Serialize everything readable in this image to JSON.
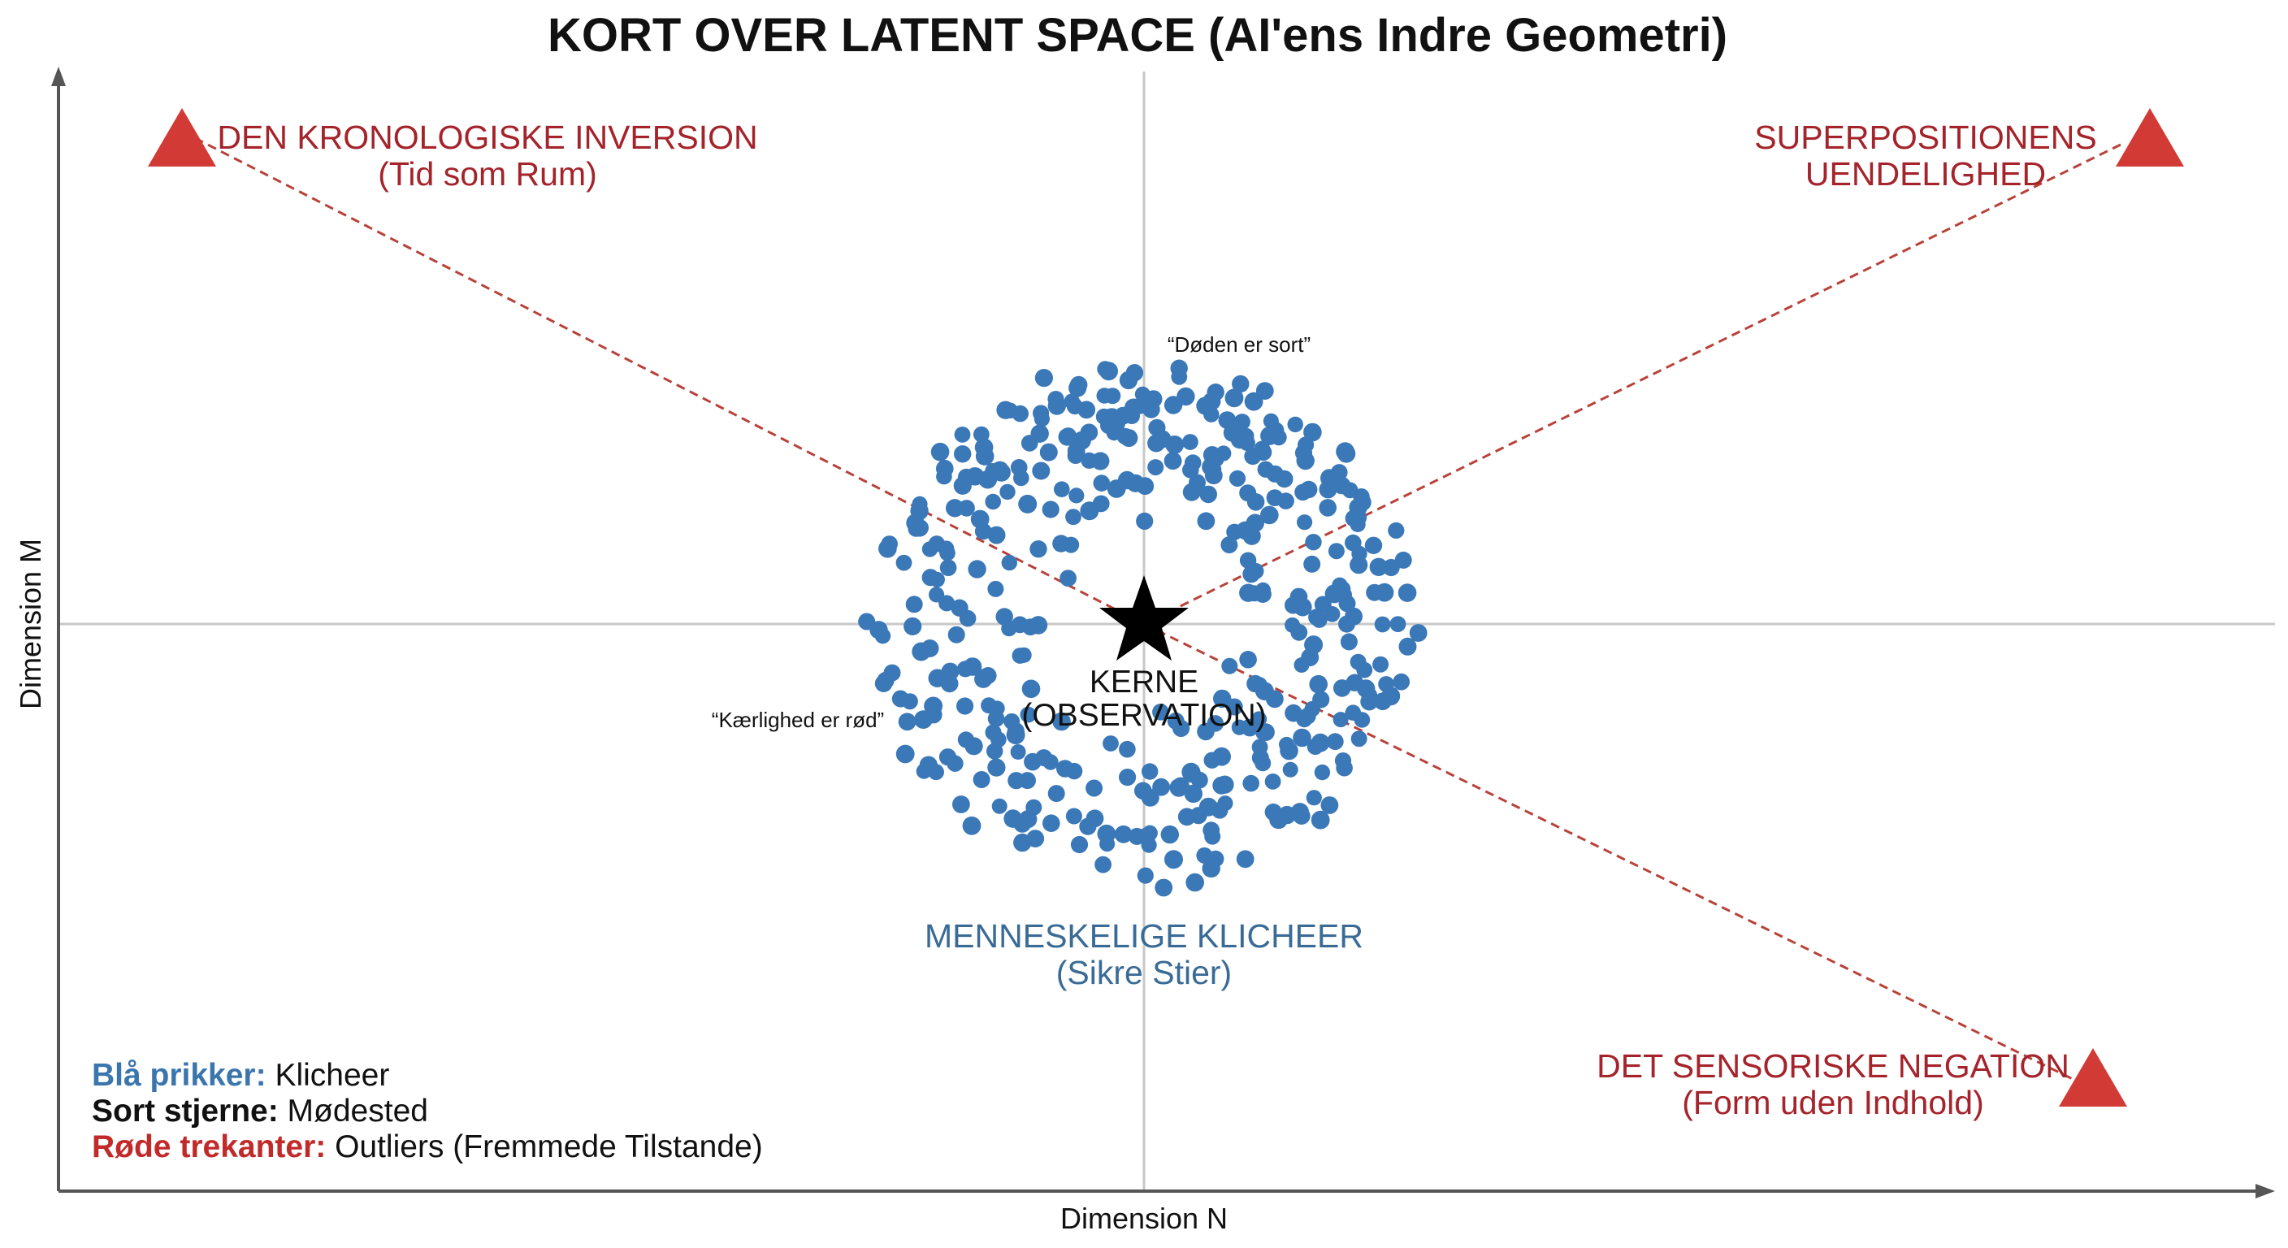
{
  "title": "KORT OVER LATENT SPACE (AI'ens Indre Geometri)",
  "axes": {
    "x_label": "Dimension N",
    "y_label": "Dimension M"
  },
  "core": {
    "line1": "KERNE",
    "line2": "(OBSERVATION)"
  },
  "cluster": {
    "line1": "MENNESKELIGE KLICHEER",
    "line2": "(Sikre Stier)",
    "color": "#3b78b8"
  },
  "quotes": {
    "top": "“Døden er sort”",
    "left": "“Kærlighed er rød”"
  },
  "outliers": {
    "color": "#d23a36",
    "label_color": "#a5232a",
    "top_left": {
      "line1": "DEN KRONOLOGISKE INVERSION",
      "line2": "(Tid som Rum)"
    },
    "top_right": {
      "line1": "SUPERPOSITIONENS",
      "line2": "UENDELIGHED"
    },
    "bottom_right": {
      "line1": "DET SENSORISKE NEGATION",
      "line2": "(Form uden Indhold)"
    }
  },
  "legend": {
    "blue": {
      "key": "Blå prikker:",
      "value": " Klicheer",
      "color": "#3a75ad"
    },
    "star": {
      "key": "Sort stjerne:",
      "value": " Mødested",
      "color": "#111111"
    },
    "red": {
      "key": "Røde trekanter:",
      "value": " Outliers (Fremmede Tilstande)",
      "color": "#c22a2a"
    }
  }
}
